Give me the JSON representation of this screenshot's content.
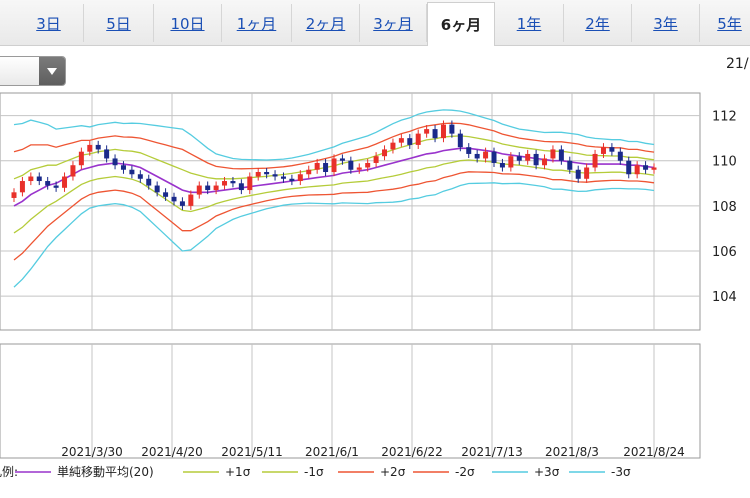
{
  "tabs": [
    {
      "label": "3日",
      "active": false
    },
    {
      "label": "5日",
      "active": false
    },
    {
      "label": "10日",
      "active": false
    },
    {
      "label": "1ヶ月",
      "active": false
    },
    {
      "label": "2ヶ月",
      "active": false
    },
    {
      "label": "3ヶ月",
      "active": false
    },
    {
      "label": "6ヶ月",
      "active": true
    },
    {
      "label": "1年",
      "active": false
    },
    {
      "label": "2年",
      "active": false
    },
    {
      "label": "3年",
      "active": false
    },
    {
      "label": "5年",
      "active": false
    }
  ],
  "date_header": "21/",
  "colors": {
    "ma": "#9933cc",
    "sigma1": "#b5cc3a",
    "sigma2": "#ee5533",
    "sigma3": "#55cce0",
    "up": "#e8302a",
    "down": "#1a2a8a",
    "grid": "#c4c4c4"
  },
  "legend": {
    "prefix": "凡例:",
    "items": [
      {
        "label": "単純移動平均(20)",
        "color": "#9933cc"
      },
      {
        "label": "+1σ",
        "color": "#b5cc3a"
      },
      {
        "label": "-1σ",
        "color": "#b5cc3a"
      },
      {
        "label": "+2σ",
        "color": "#ee5533"
      },
      {
        "label": "-2σ",
        "color": "#ee5533"
      },
      {
        "label": "+3σ",
        "color": "#55cce0"
      },
      {
        "label": "-3σ",
        "color": "#55cce0"
      }
    ]
  },
  "chart_data": {
    "type": "candlestick",
    "ylim": [
      102.5,
      113
    ],
    "yticks": [
      104,
      106,
      108,
      110,
      112
    ],
    "xlabels": [
      "2021/3/30",
      "2021/4/20",
      "2021/5/11",
      "2021/6/1",
      "2021/6/22",
      "2021/7/13",
      "2021/8/3",
      "2021/8/24"
    ],
    "grid": true,
    "legend_position": "bottom",
    "close": [
      108.6,
      109.1,
      109.3,
      109.1,
      108.9,
      108.8,
      109.3,
      109.8,
      110.4,
      110.7,
      110.5,
      110.1,
      109.8,
      109.6,
      109.4,
      109.2,
      108.9,
      108.6,
      108.4,
      108.2,
      108.0,
      108.5,
      108.9,
      108.7,
      108.9,
      109.1,
      109.0,
      108.7,
      109.3,
      109.5,
      109.4,
      109.3,
      109.2,
      109.1,
      109.4,
      109.6,
      109.9,
      109.5,
      110.1,
      110.0,
      109.6,
      109.7,
      109.9,
      110.2,
      110.5,
      110.8,
      111.0,
      110.7,
      111.2,
      111.4,
      111.0,
      111.6,
      111.2,
      110.6,
      110.3,
      110.1,
      110.4,
      109.9,
      109.7,
      110.2,
      110.0,
      110.3,
      109.8,
      110.1,
      110.5,
      110.0,
      109.6,
      109.2,
      109.7,
      110.3,
      110.6,
      110.4,
      110.0,
      109.4,
      109.8,
      109.6,
      109.7
    ],
    "ma20": [
      108.0,
      108.2,
      108.5,
      108.7,
      108.9,
      109.0,
      109.2,
      109.4,
      109.6,
      109.7,
      109.8,
      109.85,
      109.9,
      109.85,
      109.8,
      109.7,
      109.5,
      109.3,
      109.1,
      108.9,
      108.7,
      108.6,
      108.6,
      108.6,
      108.65,
      108.7,
      108.75,
      108.8,
      108.85,
      108.9,
      108.95,
      109.0,
      109.05,
      109.1,
      109.15,
      109.2,
      109.25,
      109.3,
      109.35,
      109.45,
      109.5,
      109.55,
      109.6,
      109.7,
      109.8,
      109.9,
      110.0,
      110.1,
      110.2,
      110.3,
      110.35,
      110.45,
      110.5,
      110.55,
      110.55,
      110.5,
      110.45,
      110.4,
      110.3,
      110.25,
      110.2,
      110.15,
      110.1,
      110.05,
      110.0,
      110.0,
      109.95,
      109.9,
      109.85,
      109.85,
      109.85,
      109.85,
      109.85,
      109.8,
      109.8,
      109.75,
      109.7
    ],
    "sd": [
      1.2,
      1.15,
      1.1,
      1.0,
      0.9,
      0.8,
      0.75,
      0.7,
      0.65,
      0.6,
      0.6,
      0.6,
      0.6,
      0.6,
      0.62,
      0.65,
      0.7,
      0.75,
      0.8,
      0.85,
      0.9,
      0.85,
      0.75,
      0.65,
      0.55,
      0.5,
      0.45,
      0.42,
      0.4,
      0.38,
      0.36,
      0.35,
      0.34,
      0.34,
      0.35,
      0.36,
      0.38,
      0.4,
      0.42,
      0.44,
      0.46,
      0.48,
      0.5,
      0.52,
      0.55,
      0.58,
      0.6,
      0.6,
      0.62,
      0.62,
      0.62,
      0.6,
      0.58,
      0.55,
      0.52,
      0.5,
      0.48,
      0.46,
      0.44,
      0.42,
      0.4,
      0.4,
      0.4,
      0.4,
      0.42,
      0.42,
      0.42,
      0.42,
      0.4,
      0.38,
      0.37,
      0.36,
      0.36,
      0.35,
      0.35,
      0.34,
      0.34
    ]
  }
}
